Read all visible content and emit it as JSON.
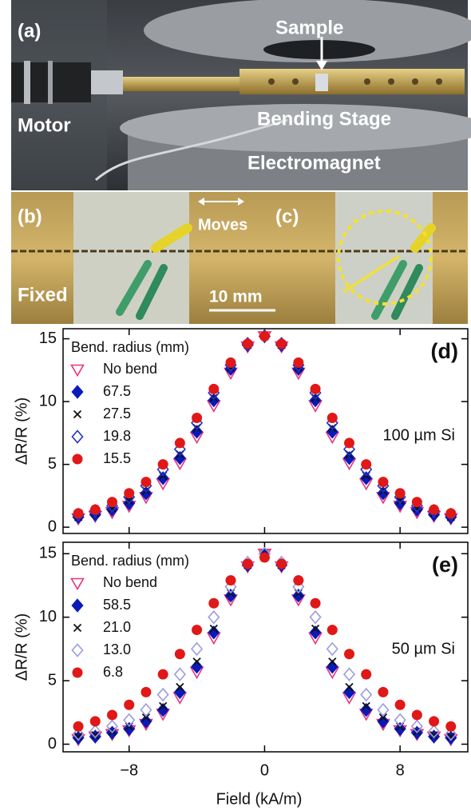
{
  "photo_labels": {
    "a": "(a)",
    "sample": "Sample",
    "motor": "Motor",
    "stage": "Bending Stage",
    "magnet": "Electromagnet",
    "b": "(b)",
    "fixed": "Fixed",
    "moves": "Moves",
    "c": "(c)",
    "scale": "10 mm"
  },
  "chart_data": [
    {
      "type": "scatter",
      "panel_label": "(d)",
      "annotation": "100 µm Si",
      "ylabel": "ΔR/R (%)",
      "legend_title": "Bend. radius (mm)",
      "x": [
        -11,
        -10,
        -9,
        -8,
        -7,
        -6,
        -5,
        -4,
        -3,
        -2,
        -1,
        0,
        1,
        2,
        3,
        4,
        5,
        6,
        7,
        8,
        9,
        10,
        11
      ],
      "xlim": [
        -11.9,
        12
      ],
      "ylim": [
        -0.5,
        15.8
      ],
      "xticks": [
        -8,
        0,
        8
      ],
      "yticks": [
        0,
        5,
        10,
        15
      ],
      "series": [
        {
          "name": "No bend",
          "color": "#e8337f",
          "marker": "triangle-open",
          "values": [
            0.7,
            0.9,
            1.2,
            1.7,
            2.4,
            3.5,
            5.1,
            7.2,
            9.7,
            12.3,
            14.4,
            15.2,
            14.4,
            12.3,
            9.7,
            7.2,
            5.1,
            3.5,
            2.4,
            1.7,
            1.2,
            0.9,
            0.7
          ]
        },
        {
          "name": "67.5",
          "color": "#0a1ab8",
          "marker": "diamond",
          "values": [
            0.8,
            1.0,
            1.4,
            1.9,
            2.7,
            3.9,
            5.5,
            7.6,
            10.1,
            12.6,
            14.5,
            15.2,
            14.5,
            12.6,
            10.1,
            7.6,
            5.5,
            3.9,
            2.7,
            1.9,
            1.4,
            1.0,
            0.8
          ]
        },
        {
          "name": "27.5",
          "color": "#111111",
          "marker": "x",
          "values": [
            0.8,
            1.1,
            1.5,
            2.1,
            2.9,
            4.1,
            5.8,
            7.9,
            10.3,
            12.7,
            14.5,
            15.2,
            14.5,
            12.7,
            10.3,
            7.9,
            5.8,
            4.1,
            2.9,
            2.1,
            1.5,
            1.1,
            0.8
          ]
        },
        {
          "name": "19.8",
          "color": "#2233cc",
          "marker": "diamond-open",
          "values": [
            1.0,
            1.3,
            1.7,
            2.4,
            3.3,
            4.6,
            6.2,
            8.3,
            10.7,
            12.9,
            14.6,
            15.2,
            14.6,
            12.9,
            10.7,
            8.3,
            6.2,
            4.6,
            3.3,
            2.4,
            1.7,
            1.3,
            1.0
          ]
        },
        {
          "name": "15.5",
          "color": "#e01818",
          "marker": "circle",
          "values": [
            1.1,
            1.4,
            2.0,
            2.7,
            3.6,
            5.0,
            6.7,
            8.7,
            11.0,
            13.1,
            14.6,
            15.2,
            14.6,
            13.1,
            11.0,
            8.7,
            6.7,
            5.0,
            3.6,
            2.7,
            2.0,
            1.4,
            1.1
          ]
        }
      ]
    },
    {
      "type": "scatter",
      "panel_label": "(e)",
      "annotation": "50 µm Si",
      "ylabel": "ΔR/R (%)",
      "xlabel": "Field (kA/m)",
      "legend_title": "Bend. radius (mm)",
      "x": [
        -11,
        -10,
        -9,
        -8,
        -7,
        -6,
        -5,
        -4,
        -3,
        -2,
        -1,
        0,
        1,
        2,
        3,
        4,
        5,
        6,
        7,
        8,
        9,
        10,
        11
      ],
      "xlim": [
        -11.9,
        12
      ],
      "ylim": [
        -0.6,
        15.9
      ],
      "xticks": [
        {
          "value": -8,
          "label": "−8"
        },
        0,
        8
      ],
      "yticks": [
        0,
        5,
        10,
        15
      ],
      "series": [
        {
          "name": "No bend",
          "color": "#e8337f",
          "marker": "triangle-open",
          "values": [
            0.4,
            0.6,
            0.8,
            1.1,
            1.6,
            2.4,
            3.7,
            5.7,
            8.4,
            11.4,
            14.0,
            15.0,
            14.0,
            11.4,
            8.4,
            5.7,
            3.7,
            2.4,
            1.6,
            1.1,
            0.8,
            0.6,
            0.4
          ]
        },
        {
          "name": "58.5",
          "color": "#0a1ab8",
          "marker": "diamond",
          "values": [
            0.5,
            0.6,
            0.9,
            1.2,
            1.8,
            2.7,
            4.1,
            6.1,
            8.8,
            11.7,
            14.1,
            15.0,
            14.1,
            11.7,
            8.8,
            6.1,
            4.1,
            2.7,
            1.8,
            1.2,
            0.9,
            0.6,
            0.5
          ]
        },
        {
          "name": "21.0",
          "color": "#111111",
          "marker": "x",
          "values": [
            0.6,
            0.7,
            1.0,
            1.4,
            2.1,
            3.0,
            4.5,
            6.5,
            9.1,
            11.9,
            14.1,
            15.0,
            14.1,
            11.9,
            9.1,
            6.5,
            4.5,
            3.0,
            2.1,
            1.4,
            1.0,
            0.7,
            0.6
          ]
        },
        {
          "name": "13.0",
          "color": "#9c9ce0",
          "marker": "diamond-open",
          "values": [
            0.8,
            1.0,
            1.4,
            1.9,
            2.7,
            3.9,
            5.5,
            7.5,
            10.0,
            12.4,
            14.3,
            15.0,
            14.3,
            12.4,
            10.0,
            7.5,
            5.5,
            3.9,
            2.7,
            1.9,
            1.4,
            1.0,
            0.8
          ]
        },
        {
          "name": "6.8",
          "color": "#e01818",
          "marker": "circle",
          "values": [
            1.4,
            1.8,
            2.3,
            3.1,
            4.1,
            5.5,
            7.1,
            9.0,
            11.1,
            12.9,
            14.2,
            14.7,
            14.2,
            12.9,
            11.1,
            9.0,
            7.1,
            5.5,
            4.1,
            3.1,
            2.3,
            1.8,
            1.4
          ]
        }
      ]
    }
  ]
}
